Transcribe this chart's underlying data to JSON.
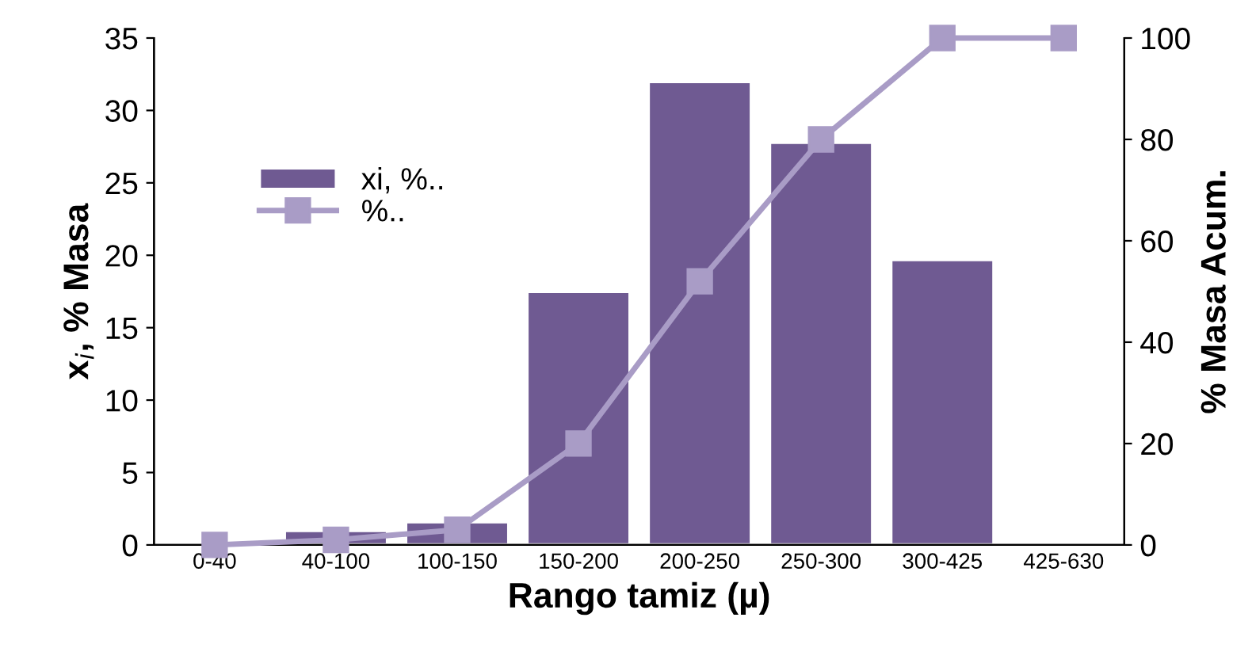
{
  "chart_data": {
    "type": "bar",
    "xlabel": "Rango tamiz (µ)",
    "ylabel": "x$_{i}$, % Masa",
    "y2label": "% Masa Acum.",
    "categories": [
      "0-40",
      "40-100",
      "100-150",
      "150-200",
      "200-250",
      "250-300",
      "300-425",
      "425-630"
    ],
    "series": [
      {
        "name": "xi, %..",
        "color": "#6f5a92",
        "values": [
          null,
          1.0,
          1.6,
          17.5,
          32,
          27.8,
          19.7,
          null
        ]
      },
      {
        "name": "%..",
        "type": "line",
        "axis": "y2",
        "color": "#a99cc6",
        "marker": "square",
        "values": [
          0,
          1,
          3,
          20,
          52,
          80,
          100,
          100
        ]
      }
    ],
    "ylim": [
      0,
      35
    ],
    "yticks": [
      0,
      5,
      10,
      15,
      20,
      25,
      30,
      35
    ],
    "y2lim": [
      0,
      100
    ],
    "y2ticks": [
      0,
      20,
      40,
      60,
      80,
      100
    ],
    "legend": "upper left",
    "grid": false
  }
}
